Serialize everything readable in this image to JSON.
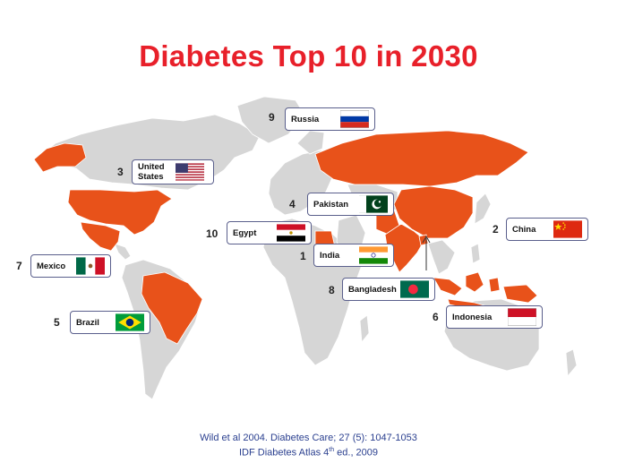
{
  "title": "Diabetes Top 10 in 2030",
  "colors": {
    "title": "#e8202a",
    "highlight": "#e8521a",
    "land": "#d6d6d6",
    "border": "#5a5f8c",
    "citation": "#2a3f8f"
  },
  "countries": [
    {
      "rank": "1",
      "name": "India",
      "flag": "india-flag"
    },
    {
      "rank": "2",
      "name": "China",
      "flag": "china-flag"
    },
    {
      "rank": "3",
      "name": "United States",
      "flag": "usa-flag"
    },
    {
      "rank": "4",
      "name": "Pakistan",
      "flag": "pakistan-flag"
    },
    {
      "rank": "5",
      "name": "Brazil",
      "flag": "brazil-flag"
    },
    {
      "rank": "6",
      "name": "Indonesia",
      "flag": "indonesia-flag"
    },
    {
      "rank": "7",
      "name": "Mexico",
      "flag": "mexico-flag"
    },
    {
      "rank": "8",
      "name": "Bangladesh",
      "flag": "bangladesh-flag"
    },
    {
      "rank": "9",
      "name": "Russia",
      "flag": "russia-flag"
    },
    {
      "rank": "10",
      "name": "Egypt",
      "flag": "egypt-flag"
    }
  ],
  "citation": {
    "line1": "Wild et al 2004. Diabetes Care; 27 (5): 1047-1053",
    "line2_prefix": "IDF Diabetes Atlas 4",
    "line2_sup": "th",
    "line2_suffix": " ed., 2009"
  }
}
